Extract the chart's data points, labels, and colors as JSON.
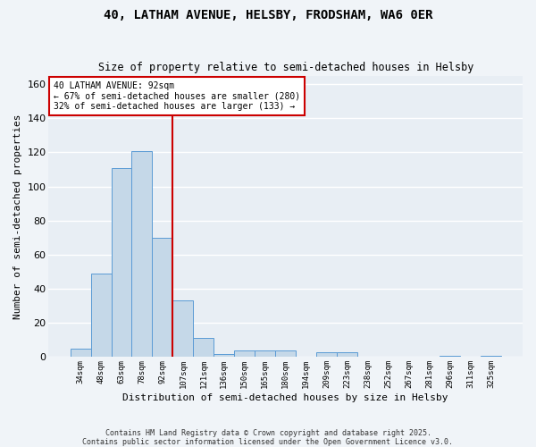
{
  "title": "40, LATHAM AVENUE, HELSBY, FRODSHAM, WA6 0ER",
  "subtitle": "Size of property relative to semi-detached houses in Helsby",
  "xlabel": "Distribution of semi-detached houses by size in Helsby",
  "ylabel": "Number of semi-detached properties",
  "categories": [
    "34sqm",
    "48sqm",
    "63sqm",
    "78sqm",
    "92sqm",
    "107sqm",
    "121sqm",
    "136sqm",
    "150sqm",
    "165sqm",
    "180sqm",
    "194sqm",
    "209sqm",
    "223sqm",
    "238sqm",
    "252sqm",
    "267sqm",
    "281sqm",
    "296sqm",
    "311sqm",
    "325sqm"
  ],
  "values": [
    5,
    49,
    111,
    121,
    70,
    33,
    11,
    2,
    4,
    4,
    4,
    0,
    3,
    3,
    0,
    0,
    0,
    0,
    1,
    0,
    1
  ],
  "bar_color": "#c5d8e8",
  "bar_edge_color": "#5b9bd5",
  "vline_color": "#cc0000",
  "annotation_title": "40 LATHAM AVENUE: 92sqm",
  "annotation_line1": "← 67% of semi-detached houses are smaller (280)",
  "annotation_line2": "32% of semi-detached houses are larger (133) →",
  "annotation_box_color": "#cc0000",
  "ylim": [
    0,
    165
  ],
  "yticks": [
    0,
    20,
    40,
    60,
    80,
    100,
    120,
    140,
    160
  ],
  "fig_background": "#f0f4f8",
  "ax_background": "#e8eef4",
  "grid_color": "#ffffff",
  "footer_line1": "Contains HM Land Registry data © Crown copyright and database right 2025.",
  "footer_line2": "Contains public sector information licensed under the Open Government Licence v3.0.",
  "title_fontsize": 10,
  "subtitle_fontsize": 8.5,
  "ylabel_fontsize": 8,
  "xlabel_fontsize": 8
}
